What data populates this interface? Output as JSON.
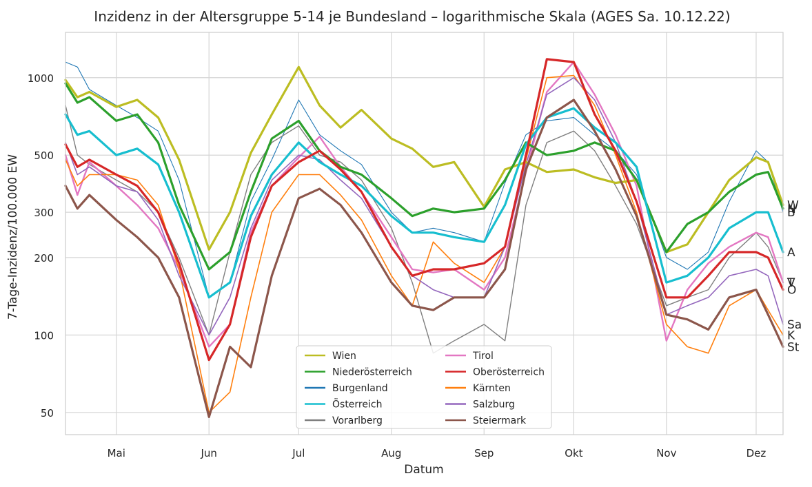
{
  "chart_data": {
    "type": "line",
    "title": "Inzidenz in der Altersgruppe 5-14 je Bundesland – logarithmische Skala (AGES Sa. 10.12.22)",
    "xlabel": "Datum",
    "ylabel": "7-Tage-Inzidenz/100.000 EW",
    "yscale": "log",
    "ylim": [
      41,
      1500
    ],
    "xlim": [
      "2022-04-14",
      "2022-12-10"
    ],
    "grid": true,
    "legend_position": "bottom-center",
    "x_ticks": [
      {
        "label": "Mai",
        "date": "2022-05-01"
      },
      {
        "label": "Jun",
        "date": "2022-06-01"
      },
      {
        "label": "Jul",
        "date": "2022-07-01"
      },
      {
        "label": "Aug",
        "date": "2022-08-01"
      },
      {
        "label": "Sep",
        "date": "2022-09-01"
      },
      {
        "label": "Okt",
        "date": "2022-10-01"
      },
      {
        "label": "Nov",
        "date": "2022-11-01"
      },
      {
        "label": "Dez",
        "date": "2022-12-01"
      }
    ],
    "y_ticks": [
      {
        "label": "50",
        "value": 50
      },
      {
        "label": "100",
        "value": 100
      },
      {
        "label": "200",
        "value": 200
      },
      {
        "label": "300",
        "value": 300
      },
      {
        "label": "500",
        "value": 500
      },
      {
        "label": "1000",
        "value": 1000
      }
    ],
    "series": [
      {
        "name": "Wien",
        "end_label": "W",
        "color": "#bcbd22",
        "width": 3.2,
        "x": [
          "2022-04-14",
          "2022-04-18",
          "2022-04-22",
          "2022-05-01",
          "2022-05-08",
          "2022-05-15",
          "2022-05-22",
          "2022-06-01",
          "2022-06-08",
          "2022-06-15",
          "2022-06-22",
          "2022-07-01",
          "2022-07-08",
          "2022-07-15",
          "2022-07-22",
          "2022-08-01",
          "2022-08-08",
          "2022-08-15",
          "2022-08-22",
          "2022-09-01",
          "2022-09-08",
          "2022-09-15",
          "2022-09-22",
          "2022-10-01",
          "2022-10-08",
          "2022-10-15",
          "2022-10-22",
          "2022-11-01",
          "2022-11-08",
          "2022-11-15",
          "2022-11-22",
          "2022-12-01",
          "2022-12-05",
          "2022-12-10"
        ],
        "y": [
          980,
          840,
          880,
          770,
          820,
          700,
          480,
          215,
          300,
          510,
          720,
          1100,
          780,
          640,
          750,
          580,
          530,
          450,
          470,
          315,
          440,
          470,
          430,
          440,
          410,
          390,
          400,
          210,
          225,
          300,
          400,
          490,
          470,
          320
        ]
      },
      {
        "name": "Niederösterreich",
        "end_label": "N",
        "color": "#2ca02c",
        "width": 3.2,
        "x": [
          "2022-04-14",
          "2022-04-18",
          "2022-04-22",
          "2022-05-01",
          "2022-05-08",
          "2022-05-15",
          "2022-05-22",
          "2022-06-01",
          "2022-06-08",
          "2022-06-15",
          "2022-06-22",
          "2022-07-01",
          "2022-07-08",
          "2022-07-15",
          "2022-07-22",
          "2022-08-01",
          "2022-08-08",
          "2022-08-15",
          "2022-08-22",
          "2022-09-01",
          "2022-09-08",
          "2022-09-15",
          "2022-09-22",
          "2022-10-01",
          "2022-10-08",
          "2022-10-15",
          "2022-10-22",
          "2022-11-01",
          "2022-11-08",
          "2022-11-15",
          "2022-11-22",
          "2022-12-01",
          "2022-12-05",
          "2022-12-10"
        ],
        "y": [
          950,
          800,
          840,
          680,
          720,
          560,
          320,
          180,
          210,
          360,
          580,
          680,
          520,
          450,
          420,
          340,
          290,
          310,
          300,
          310,
          400,
          560,
          500,
          520,
          560,
          520,
          400,
          210,
          270,
          300,
          360,
          420,
          430,
          310
        ]
      },
      {
        "name": "Burgenland",
        "end_label": "B",
        "color": "#1f77b4",
        "width": 1.1,
        "x": [
          "2022-04-14",
          "2022-04-18",
          "2022-04-22",
          "2022-05-01",
          "2022-05-08",
          "2022-05-15",
          "2022-05-22",
          "2022-06-01",
          "2022-06-08",
          "2022-06-15",
          "2022-06-22",
          "2022-07-01",
          "2022-07-08",
          "2022-07-15",
          "2022-07-22",
          "2022-08-01",
          "2022-08-08",
          "2022-08-15",
          "2022-08-22",
          "2022-09-01",
          "2022-09-08",
          "2022-09-15",
          "2022-09-22",
          "2022-10-01",
          "2022-10-08",
          "2022-10-15",
          "2022-10-22",
          "2022-11-01",
          "2022-11-08",
          "2022-11-15",
          "2022-11-22",
          "2022-12-01",
          "2022-12-05",
          "2022-12-10"
        ],
        "y": [
          1150,
          1100,
          900,
          780,
          700,
          620,
          400,
          140,
          160,
          330,
          480,
          820,
          600,
          520,
          460,
          300,
          250,
          260,
          250,
          230,
          390,
          600,
          680,
          700,
          600,
          520,
          420,
          200,
          180,
          210,
          330,
          520,
          470,
          300
        ]
      },
      {
        "name": "Österreich",
        "end_label": "A",
        "color": "#17becf",
        "width": 3.2,
        "x": [
          "2022-04-14",
          "2022-04-18",
          "2022-04-22",
          "2022-05-01",
          "2022-05-08",
          "2022-05-15",
          "2022-05-22",
          "2022-06-01",
          "2022-06-08",
          "2022-06-15",
          "2022-06-22",
          "2022-07-01",
          "2022-07-08",
          "2022-07-15",
          "2022-07-22",
          "2022-08-01",
          "2022-08-08",
          "2022-08-15",
          "2022-08-22",
          "2022-09-01",
          "2022-09-08",
          "2022-09-15",
          "2022-09-22",
          "2022-10-01",
          "2022-10-08",
          "2022-10-15",
          "2022-10-22",
          "2022-11-01",
          "2022-11-08",
          "2022-11-15",
          "2022-11-22",
          "2022-12-01",
          "2022-12-05",
          "2022-12-10"
        ],
        "y": [
          720,
          600,
          620,
          500,
          530,
          460,
          300,
          140,
          160,
          290,
          420,
          560,
          470,
          420,
          380,
          290,
          250,
          250,
          240,
          230,
          320,
          550,
          700,
          760,
          640,
          560,
          450,
          160,
          170,
          200,
          260,
          300,
          300,
          210
        ]
      },
      {
        "name": "Vorarlberg",
        "end_label": "V",
        "color": "#7f7f7f",
        "width": 1.4,
        "x": [
          "2022-04-14",
          "2022-04-18",
          "2022-04-22",
          "2022-05-01",
          "2022-05-08",
          "2022-05-15",
          "2022-05-22",
          "2022-06-01",
          "2022-06-08",
          "2022-06-15",
          "2022-06-22",
          "2022-07-01",
          "2022-07-08",
          "2022-07-15",
          "2022-07-22",
          "2022-08-01",
          "2022-08-08",
          "2022-08-15",
          "2022-08-22",
          "2022-09-01",
          "2022-09-08",
          "2022-09-15",
          "2022-09-22",
          "2022-10-01",
          "2022-10-08",
          "2022-10-15",
          "2022-10-22",
          "2022-11-01",
          "2022-11-08",
          "2022-11-15",
          "2022-11-22",
          "2022-12-01",
          "2022-12-05",
          "2022-12-10"
        ],
        "y": [
          780,
          500,
          460,
          400,
          360,
          300,
          200,
          100,
          210,
          420,
          560,
          650,
          500,
          470,
          400,
          260,
          160,
          85,
          95,
          110,
          95,
          320,
          560,
          620,
          520,
          380,
          270,
          130,
          140,
          150,
          200,
          250,
          220,
          160
        ]
      },
      {
        "name": "Tirol",
        "end_label": "T",
        "color": "#e377c2",
        "width": 2.4,
        "x": [
          "2022-04-14",
          "2022-04-18",
          "2022-04-22",
          "2022-05-01",
          "2022-05-08",
          "2022-05-15",
          "2022-05-22",
          "2022-06-01",
          "2022-06-08",
          "2022-06-15",
          "2022-06-22",
          "2022-07-01",
          "2022-07-08",
          "2022-07-15",
          "2022-07-22",
          "2022-08-01",
          "2022-08-08",
          "2022-08-15",
          "2022-08-22",
          "2022-09-01",
          "2022-09-08",
          "2022-09-15",
          "2022-09-22",
          "2022-10-01",
          "2022-10-08",
          "2022-10-15",
          "2022-10-22",
          "2022-11-01",
          "2022-11-08",
          "2022-11-15",
          "2022-11-22",
          "2022-12-01",
          "2022-12-05",
          "2022-12-10"
        ],
        "y": [
          500,
          350,
          470,
          380,
          320,
          260,
          180,
          90,
          110,
          250,
          380,
          490,
          590,
          450,
          360,
          240,
          180,
          175,
          180,
          150,
          200,
          430,
          880,
          1150,
          860,
          600,
          380,
          95,
          150,
          190,
          220,
          250,
          240,
          160
        ]
      },
      {
        "name": "Oberösterreich",
        "end_label": "O",
        "color": "#d62728",
        "width": 3.2,
        "x": [
          "2022-04-14",
          "2022-04-18",
          "2022-04-22",
          "2022-05-01",
          "2022-05-08",
          "2022-05-15",
          "2022-05-22",
          "2022-06-01",
          "2022-06-08",
          "2022-06-15",
          "2022-06-22",
          "2022-07-01",
          "2022-07-08",
          "2022-07-15",
          "2022-07-22",
          "2022-08-01",
          "2022-08-08",
          "2022-08-15",
          "2022-08-22",
          "2022-09-01",
          "2022-09-08",
          "2022-09-15",
          "2022-09-22",
          "2022-10-01",
          "2022-10-08",
          "2022-10-15",
          "2022-10-22",
          "2022-11-01",
          "2022-11-08",
          "2022-11-15",
          "2022-11-22",
          "2022-12-01",
          "2022-12-05",
          "2022-12-10"
        ],
        "y": [
          550,
          450,
          480,
          420,
          380,
          300,
          190,
          80,
          110,
          240,
          380,
          470,
          520,
          440,
          360,
          220,
          170,
          180,
          180,
          190,
          220,
          500,
          1180,
          1150,
          720,
          520,
          330,
          140,
          140,
          170,
          210,
          210,
          200,
          150
        ]
      },
      {
        "name": "Kärnten",
        "end_label": "K",
        "color": "#ff7f0e",
        "width": 1.6,
        "x": [
          "2022-04-14",
          "2022-04-18",
          "2022-04-22",
          "2022-05-01",
          "2022-05-08",
          "2022-05-15",
          "2022-05-22",
          "2022-06-01",
          "2022-06-08",
          "2022-06-15",
          "2022-06-22",
          "2022-07-01",
          "2022-07-08",
          "2022-07-15",
          "2022-07-22",
          "2022-08-01",
          "2022-08-08",
          "2022-08-15",
          "2022-08-22",
          "2022-09-01",
          "2022-09-08",
          "2022-09-15",
          "2022-09-22",
          "2022-10-01",
          "2022-10-08",
          "2022-10-15",
          "2022-10-22",
          "2022-11-01",
          "2022-11-08",
          "2022-11-15",
          "2022-11-22",
          "2022-12-01",
          "2022-12-05",
          "2022-12-10"
        ],
        "y": [
          480,
          380,
          420,
          420,
          400,
          320,
          180,
          50,
          60,
          140,
          300,
          420,
          420,
          350,
          280,
          170,
          130,
          230,
          190,
          160,
          220,
          480,
          1000,
          1020,
          780,
          500,
          300,
          110,
          90,
          85,
          130,
          150,
          125,
          100
        ]
      },
      {
        "name": "Salzburg",
        "end_label": "Sa",
        "color": "#9467bd",
        "width": 1.6,
        "x": [
          "2022-04-14",
          "2022-04-18",
          "2022-04-22",
          "2022-05-01",
          "2022-05-08",
          "2022-05-15",
          "2022-05-22",
          "2022-06-01",
          "2022-06-08",
          "2022-06-15",
          "2022-06-22",
          "2022-07-01",
          "2022-07-08",
          "2022-07-15",
          "2022-07-22",
          "2022-08-01",
          "2022-08-08",
          "2022-08-15",
          "2022-08-22",
          "2022-09-01",
          "2022-09-08",
          "2022-09-15",
          "2022-09-22",
          "2022-10-01",
          "2022-10-08",
          "2022-10-15",
          "2022-10-22",
          "2022-11-01",
          "2022-11-08",
          "2022-11-15",
          "2022-11-22",
          "2022-12-01",
          "2022-12-05",
          "2022-12-10"
        ],
        "y": [
          560,
          420,
          450,
          380,
          360,
          280,
          170,
          100,
          140,
          260,
          400,
          500,
          480,
          400,
          340,
          220,
          170,
          150,
          140,
          140,
          220,
          460,
          860,
          1000,
          820,
          560,
          330,
          120,
          130,
          140,
          170,
          180,
          170,
          110
        ]
      },
      {
        "name": "Steiermark",
        "end_label": "St",
        "color": "#8c564b",
        "width": 3.2,
        "x": [
          "2022-04-14",
          "2022-04-18",
          "2022-04-22",
          "2022-05-01",
          "2022-05-08",
          "2022-05-15",
          "2022-05-22",
          "2022-06-01",
          "2022-06-08",
          "2022-06-15",
          "2022-06-22",
          "2022-07-01",
          "2022-07-08",
          "2022-07-15",
          "2022-07-22",
          "2022-08-01",
          "2022-08-08",
          "2022-08-15",
          "2022-08-22",
          "2022-09-01",
          "2022-09-08",
          "2022-09-15",
          "2022-09-22",
          "2022-10-01",
          "2022-10-08",
          "2022-10-15",
          "2022-10-22",
          "2022-11-01",
          "2022-11-08",
          "2022-11-15",
          "2022-11-22",
          "2022-12-01",
          "2022-12-05",
          "2022-12-10"
        ],
        "y": [
          380,
          310,
          350,
          280,
          240,
          200,
          140,
          48,
          90,
          75,
          170,
          340,
          370,
          320,
          250,
          160,
          130,
          125,
          140,
          140,
          180,
          440,
          700,
          820,
          620,
          440,
          290,
          120,
          115,
          105,
          140,
          150,
          120,
          90
        ]
      }
    ]
  }
}
